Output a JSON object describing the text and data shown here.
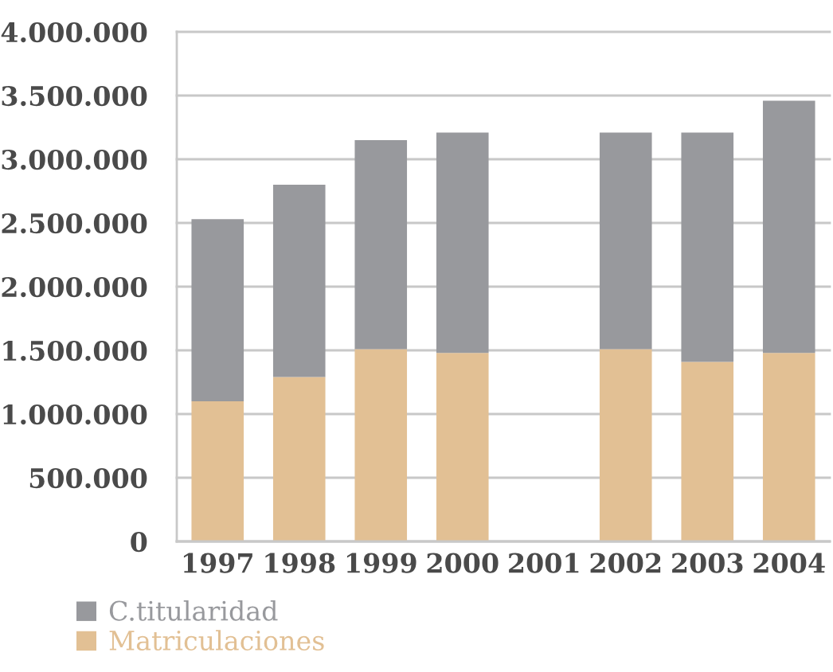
{
  "chart_data": {
    "type": "bar",
    "stacked": true,
    "categories": [
      "1997",
      "1998",
      "1999",
      "2000",
      "2001",
      "2002",
      "2003",
      "2004"
    ],
    "series": [
      {
        "name": "Matriculaciones",
        "color": "#e2c094",
        "values": [
          1100000,
          1290000,
          1510000,
          1480000,
          null,
          1510000,
          1410000,
          1480000
        ]
      },
      {
        "name": "C.titularidad",
        "color": "#98999d",
        "values": [
          1430000,
          1510000,
          1640000,
          1730000,
          null,
          1700000,
          1800000,
          1980000
        ]
      }
    ],
    "ylim": [
      0,
      4000000
    ],
    "yticks": [
      0,
      {
        "value": 500000,
        "label": "500.000"
      },
      {
        "value": 1000000,
        "label": "1.000.000"
      },
      {
        "value": 1500000,
        "label": "1.500.000"
      },
      {
        "value": 2000000,
        "label": "2.000.000"
      },
      {
        "value": 2500000,
        "label": "2.500.000"
      },
      {
        "value": 3000000,
        "label": "3.000.000"
      },
      {
        "value": 3500000,
        "label": "3.500.000"
      },
      {
        "value": 4000000,
        "label": "4.000.000"
      }
    ],
    "grid": "y",
    "legend": "bottom left"
  }
}
